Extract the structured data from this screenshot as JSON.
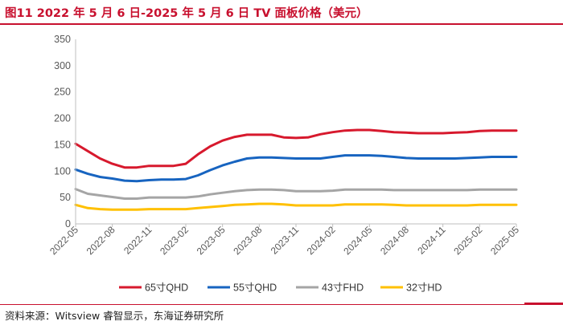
{
  "header": {
    "title": "图11  2022 年 5 月 6 日-2025 年 5 月 6 日 TV 面板价格（美元）"
  },
  "footer": {
    "source": "资料来源：Witsview 睿智显示，东海证券研究所"
  },
  "colors": {
    "accent": "#c8102e",
    "axis": "#bfbfbf",
    "tick_text": "#595959"
  },
  "chart_data": {
    "type": "line",
    "title": "图11  2022 年 5 月 6 日-2025 年 5 月 6 日 TV 面板价格（美元）",
    "xlabel": "",
    "ylabel": "",
    "ylim": [
      0,
      350
    ],
    "yticks": [
      0,
      50,
      100,
      150,
      200,
      250,
      300,
      350
    ],
    "grid": false,
    "legend_position": "bottom",
    "x": [
      "2022-05",
      "2022-06",
      "2022-07",
      "2022-08",
      "2022-09",
      "2022-10",
      "2022-11",
      "2022-12",
      "2023-01",
      "2023-02",
      "2023-03",
      "2023-04",
      "2023-05",
      "2023-06",
      "2023-07",
      "2023-08",
      "2023-09",
      "2023-10",
      "2023-11",
      "2023-12",
      "2024-01",
      "2024-02",
      "2024-03",
      "2024-04",
      "2024-05",
      "2024-06",
      "2024-07",
      "2024-08",
      "2024-09",
      "2024-10",
      "2024-11",
      "2024-12",
      "2025-01",
      "2025-02",
      "2025-03",
      "2025-04",
      "2025-05"
    ],
    "xtick_labels": [
      "2022-05",
      "2022-08",
      "2022-11",
      "2023-02",
      "2023-05",
      "2023-08",
      "2023-11",
      "2024-02",
      "2024-05",
      "2024-08",
      "2024-11",
      "2025-02",
      "2025-05"
    ],
    "series": [
      {
        "name": "65寸QHD",
        "color": "#d7192d",
        "values": [
          152,
          138,
          124,
          114,
          107,
          107,
          110,
          110,
          110,
          114,
          132,
          147,
          158,
          165,
          169,
          169,
          169,
          164,
          163,
          164,
          170,
          174,
          177,
          178,
          178,
          176,
          174,
          173,
          172,
          172,
          172,
          173,
          174,
          176,
          177,
          177,
          177
        ]
      },
      {
        "name": "55寸QHD",
        "color": "#1764c0",
        "values": [
          103,
          95,
          89,
          86,
          82,
          81,
          83,
          84,
          84,
          85,
          92,
          102,
          111,
          118,
          124,
          126,
          126,
          125,
          124,
          124,
          124,
          127,
          130,
          130,
          130,
          129,
          127,
          125,
          124,
          124,
          124,
          124,
          125,
          126,
          127,
          127,
          127
        ]
      },
      {
        "name": "43寸FHD",
        "color": "#a5a5a5",
        "values": [
          66,
          57,
          54,
          51,
          48,
          48,
          50,
          50,
          50,
          50,
          52,
          56,
          59,
          62,
          64,
          65,
          65,
          64,
          62,
          62,
          62,
          63,
          65,
          65,
          65,
          65,
          64,
          64,
          64,
          64,
          64,
          64,
          64,
          65,
          65,
          65,
          65
        ]
      },
      {
        "name": "32寸HD",
        "color": "#ffc000",
        "values": [
          36,
          30,
          28,
          27,
          27,
          27,
          28,
          28,
          28,
          28,
          30,
          32,
          34,
          36,
          37,
          38,
          38,
          37,
          35,
          35,
          35,
          35,
          37,
          37,
          37,
          37,
          36,
          35,
          35,
          35,
          35,
          35,
          35,
          36,
          36,
          36,
          36
        ]
      }
    ]
  }
}
